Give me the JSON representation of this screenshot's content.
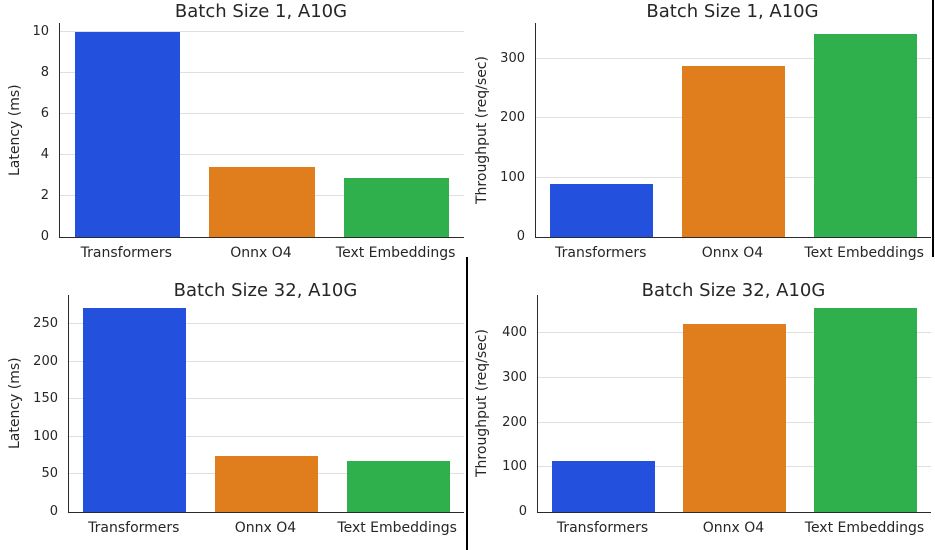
{
  "palette": {
    "bar_colors": [
      "#2351DE",
      "#E07E1E",
      "#2FB04D"
    ],
    "grid_color": "#DFDFDF",
    "spine_color": "#2A2A2A",
    "text_color": "#262626",
    "divider_color": "#000000"
  },
  "chart_data": [
    {
      "type": "bar",
      "position": "top-left",
      "title": "Batch Size 1, A10G",
      "xlabel": "",
      "ylabel": "Latency (ms)",
      "categories": [
        "Transformers",
        "Onnx O4",
        "Text Embeddings"
      ],
      "values": [
        10.0,
        3.4,
        2.9
      ],
      "yticks": [
        0,
        2,
        4,
        6,
        8,
        10
      ],
      "ylim": [
        0,
        10.45
      ],
      "grid": "horizontal",
      "legend": false
    },
    {
      "type": "bar",
      "position": "top-right",
      "title": "Batch Size 1, A10G",
      "xlabel": "",
      "ylabel": "Throughput (req/sec)",
      "categories": [
        "Transformers",
        "Onnx O4",
        "Text Embeddings"
      ],
      "values": [
        90,
        288,
        342
      ],
      "yticks": [
        0,
        100,
        200,
        300
      ],
      "ylim": [
        0,
        360
      ],
      "grid": "horizontal",
      "legend": false
    },
    {
      "type": "bar",
      "position": "bottom-left",
      "title": "Batch Size 32, A10G",
      "xlabel": "",
      "ylabel": "Latency (ms)",
      "categories": [
        "Transformers",
        "Onnx O4",
        "Text Embeddings"
      ],
      "values": [
        272,
        75,
        68
      ],
      "yticks": [
        0,
        50,
        100,
        150,
        200,
        250
      ],
      "ylim": [
        0,
        289
      ],
      "grid": "horizontal",
      "legend": false
    },
    {
      "type": "bar",
      "position": "bottom-right",
      "title": "Batch Size 32, A10G",
      "xlabel": "",
      "ylabel": "Throughput (req/sec)",
      "categories": [
        "Transformers",
        "Onnx O4",
        "Text Embeddings"
      ],
      "values": [
        114,
        420,
        455
      ],
      "yticks": [
        0,
        100,
        200,
        300,
        400
      ],
      "ylim": [
        0,
        485
      ],
      "grid": "horizontal",
      "legend": false
    }
  ]
}
